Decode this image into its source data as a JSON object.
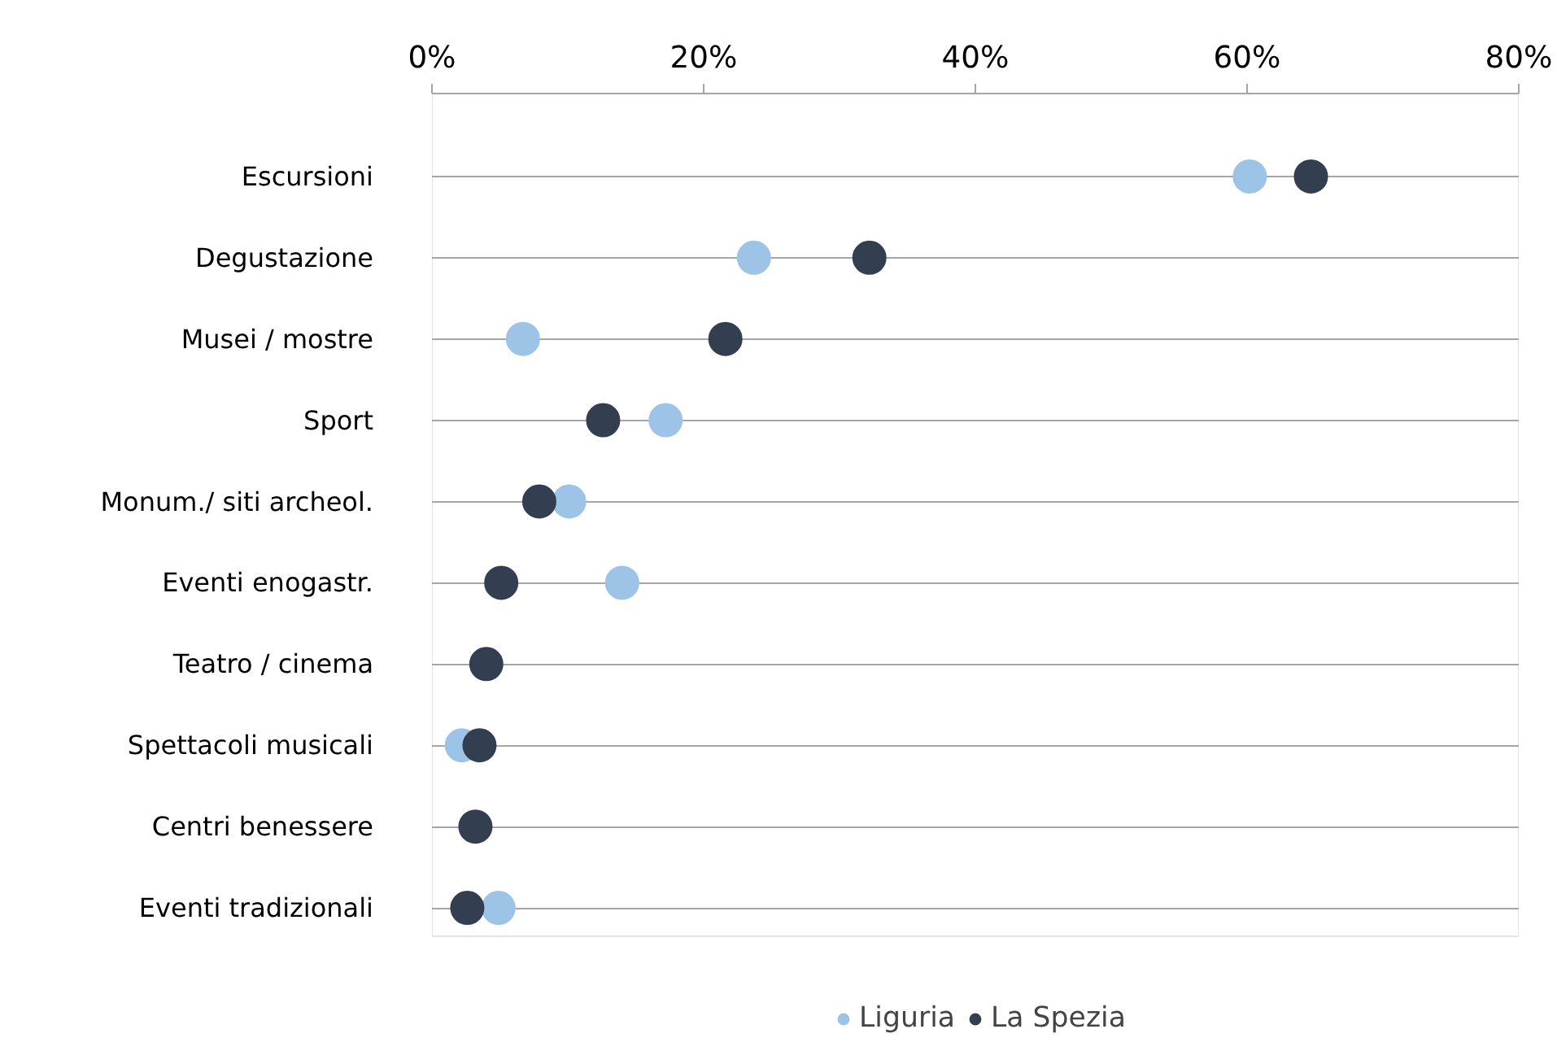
{
  "chart_data": {
    "type": "scatter",
    "orientation": "horizontal",
    "categories": [
      "Escursioni",
      "Degustazione",
      "Musei / mostre",
      "Sport",
      "Monum./ siti archeol.",
      "Eventi enogastr.",
      "Teatro / cinema",
      "Spettacoli musicali",
      "Centri benessere",
      "Eventi tradizionali"
    ],
    "series": [
      {
        "name": "Liguria",
        "color": "#9dc3e6",
        "values": [
          60.2,
          23.7,
          6.7,
          17.2,
          10.1,
          14.0,
          null,
          2.2,
          null,
          4.9
        ]
      },
      {
        "name": "La Spezia",
        "color": "#333f50",
        "values": [
          64.7,
          32.2,
          21.6,
          12.6,
          7.9,
          5.1,
          4.0,
          3.5,
          3.2,
          2.6
        ]
      }
    ],
    "xlim": [
      0,
      80
    ],
    "xticks": [
      {
        "value": 0,
        "label": "0%"
      },
      {
        "value": 20,
        "label": "20%"
      },
      {
        "value": 40,
        "label": "40%"
      },
      {
        "value": 60,
        "label": "60%"
      },
      {
        "value": 80,
        "label": "80%"
      }
    ],
    "grid": "y",
    "legend": "bottom",
    "marker": "circle"
  }
}
